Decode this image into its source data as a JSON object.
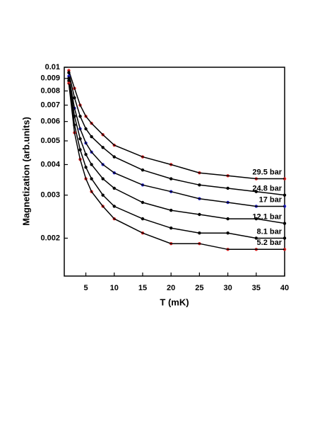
{
  "chart_data": {
    "type": "scatter",
    "xlabel": "T  (mK)",
    "ylabel": "Magnetization  (arb.units)",
    "log_y": true,
    "x": [
      2,
      3,
      4,
      5,
      6,
      8,
      10,
      15,
      20,
      25,
      30,
      35,
      40
    ],
    "series": [
      {
        "name": "29.5  bar",
        "color": "#e02020",
        "values": [
          0.0097,
          0.0082,
          0.007,
          0.0063,
          0.0059,
          0.0053,
          0.0048,
          0.0043,
          0.004,
          0.0037,
          0.0036,
          0.0035,
          0.0035
        ]
      },
      {
        "name": "24.8  bar",
        "color": "#000000",
        "values": [
          0.0095,
          0.0075,
          0.0063,
          0.0056,
          0.0052,
          0.0047,
          0.0043,
          0.0038,
          0.0035,
          0.0033,
          0.0032,
          0.0031,
          0.003
        ]
      },
      {
        "name": "17  bar",
        "color": "#2020d0",
        "values": [
          0.0092,
          0.0068,
          0.0056,
          0.0049,
          0.0045,
          0.004,
          0.0037,
          0.0033,
          0.0031,
          0.0029,
          0.0028,
          0.0027,
          0.0027
        ]
      },
      {
        "name": "12.1  bar",
        "color": "#000000",
        "values": [
          0.009,
          0.0063,
          0.0051,
          0.0044,
          0.004,
          0.0035,
          0.0032,
          0.0028,
          0.0026,
          0.0025,
          0.0024,
          0.0024,
          0.0023
        ]
      },
      {
        "name": "8.1  bar",
        "color": "#000000",
        "values": [
          0.0088,
          0.0058,
          0.0046,
          0.0039,
          0.0035,
          0.003,
          0.0027,
          0.0024,
          0.0022,
          0.0021,
          0.0021,
          0.002,
          0.002
        ]
      },
      {
        "name": "5.2  bar",
        "color": "#e02020",
        "values": [
          0.0086,
          0.0054,
          0.0042,
          0.0035,
          0.0031,
          0.0027,
          0.0024,
          0.0021,
          0.0019,
          0.0019,
          0.0018,
          0.0018,
          0.0018
        ]
      }
    ],
    "xlim": [
      1.2,
      40
    ],
    "xticks": [
      5,
      10,
      15,
      20,
      25,
      30,
      35,
      40
    ],
    "ylim": [
      0.0014,
      0.01
    ],
    "yticks": [
      0.01,
      0.009,
      0.008,
      0.007,
      0.006,
      0.005,
      0.004,
      0.003,
      0.002
    ]
  }
}
